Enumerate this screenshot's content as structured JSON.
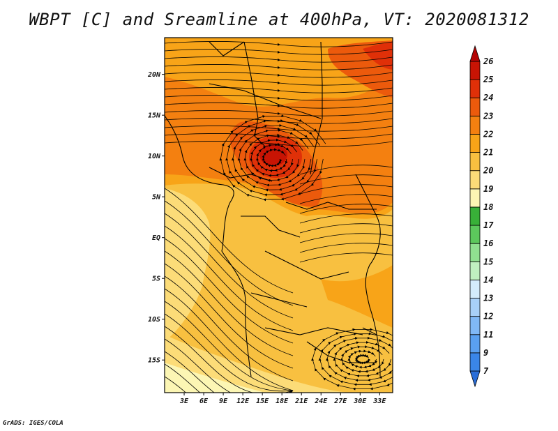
{
  "title": "WBPT [C] and Sreamline at 400hPa, VT: 2020081312",
  "footer": "GrADS: IGES/COLA",
  "map": {
    "lon_labels": [
      "3E",
      "6E",
      "9E",
      "12E",
      "15E",
      "18E",
      "21E",
      "24E",
      "27E",
      "30E",
      "33E"
    ],
    "lat_labels": [
      "20N",
      "15N",
      "10N",
      "5N",
      "EQ",
      "5S",
      "10S",
      "15S"
    ],
    "lon_values": [
      3,
      6,
      9,
      12,
      15,
      18,
      21,
      24,
      27,
      30,
      33
    ],
    "lat_values": [
      20,
      15,
      10,
      5,
      0,
      -5,
      -10,
      -15
    ],
    "lon_range": [
      0,
      35
    ],
    "lat_range": [
      -19,
      24.5
    ]
  },
  "colorbar": {
    "labels": [
      "7",
      "9",
      "11",
      "12",
      "13",
      "14",
      "15",
      "16",
      "17",
      "18",
      "19",
      "20",
      "21",
      "22",
      "23",
      "24",
      "25",
      "26"
    ],
    "colors": [
      "#2a6ed8",
      "#3a86e8",
      "#5aa0f0",
      "#80b8f6",
      "#a8d0f8",
      "#d4ecfc",
      "#c0f0c0",
      "#90e090",
      "#5cc85c",
      "#38b038",
      "#fcf6b4",
      "#fcdc78",
      "#f8c040",
      "#f8a418",
      "#f48010",
      "#ec5a0c",
      "#e03008",
      "#c81404",
      "#b40404"
    ]
  }
}
